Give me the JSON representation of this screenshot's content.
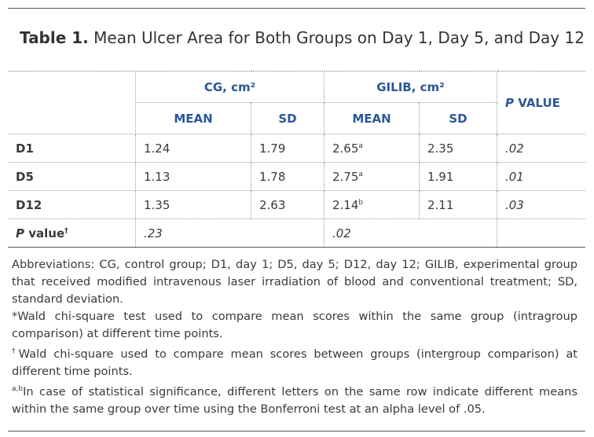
{
  "title": {
    "label": "Table 1.",
    "text": "Mean Ulcer Area for Both Groups on Day 1, Day 5, and Day 12"
  },
  "table": {
    "group_headers": [
      "CG, cm²",
      "GILIB, cm²"
    ],
    "p_header": {
      "italic": "P",
      "text": " VALUE"
    },
    "sub_headers": [
      "MEAN",
      "SD",
      "MEAN",
      "SD"
    ],
    "rows": [
      [
        "D1",
        "1.24",
        "1.79",
        {
          "text": "2.65",
          "sup": "a"
        },
        "2.35",
        ".02"
      ],
      [
        "D5",
        "1.13",
        "1.78",
        {
          "text": "2.75",
          "sup": "a"
        },
        "1.91",
        ".01"
      ],
      [
        "D12",
        "1.35",
        "2.63",
        {
          "text": "2.14",
          "sup": "b"
        },
        "2.11",
        ".03"
      ]
    ],
    "p_row": {
      "label": {
        "italic": "P",
        "text": " value",
        "sup": "†"
      },
      "cells": [
        ".23",
        ".02"
      ]
    }
  },
  "footnotes": [
    {
      "text": "Abbreviations: CG, control group; D1, day 1; D5, day 5; D12, day 12; GILIB, experimental group that received modified intravenous laser irradiation of blood and conventional treatment; SD, standard deviation."
    },
    {
      "mark": "*",
      "text": "Wald chi-square test used to compare mean scores within the same group (intragroup comparison) at different time points."
    },
    {
      "mark": "†",
      "text": "Wald chi-square used to compare mean scores between groups (intergroup comparison) at different time points."
    },
    {
      "mark": "a,b",
      "text": "In case of statistical significance, different letters on the same row indicate different means within the same group over time using the Bonferroni test at an alpha level of .05."
    }
  ]
}
